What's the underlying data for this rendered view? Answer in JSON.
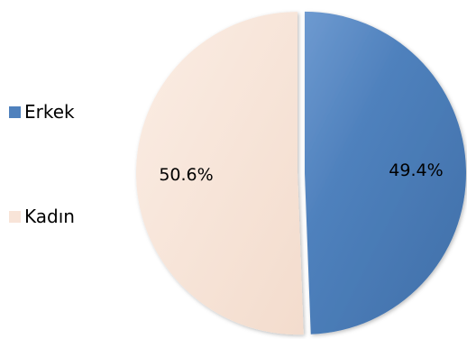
{
  "chart_data": {
    "type": "pie",
    "title": "",
    "categories": [
      "Erkek",
      "Kadın"
    ],
    "values": [
      49.4,
      50.6
    ],
    "labels": [
      "49.4%",
      "50.6%"
    ],
    "colors": [
      "#4F81BD",
      "#F8E4D8"
    ],
    "legend_position": "left",
    "exploded": true
  }
}
